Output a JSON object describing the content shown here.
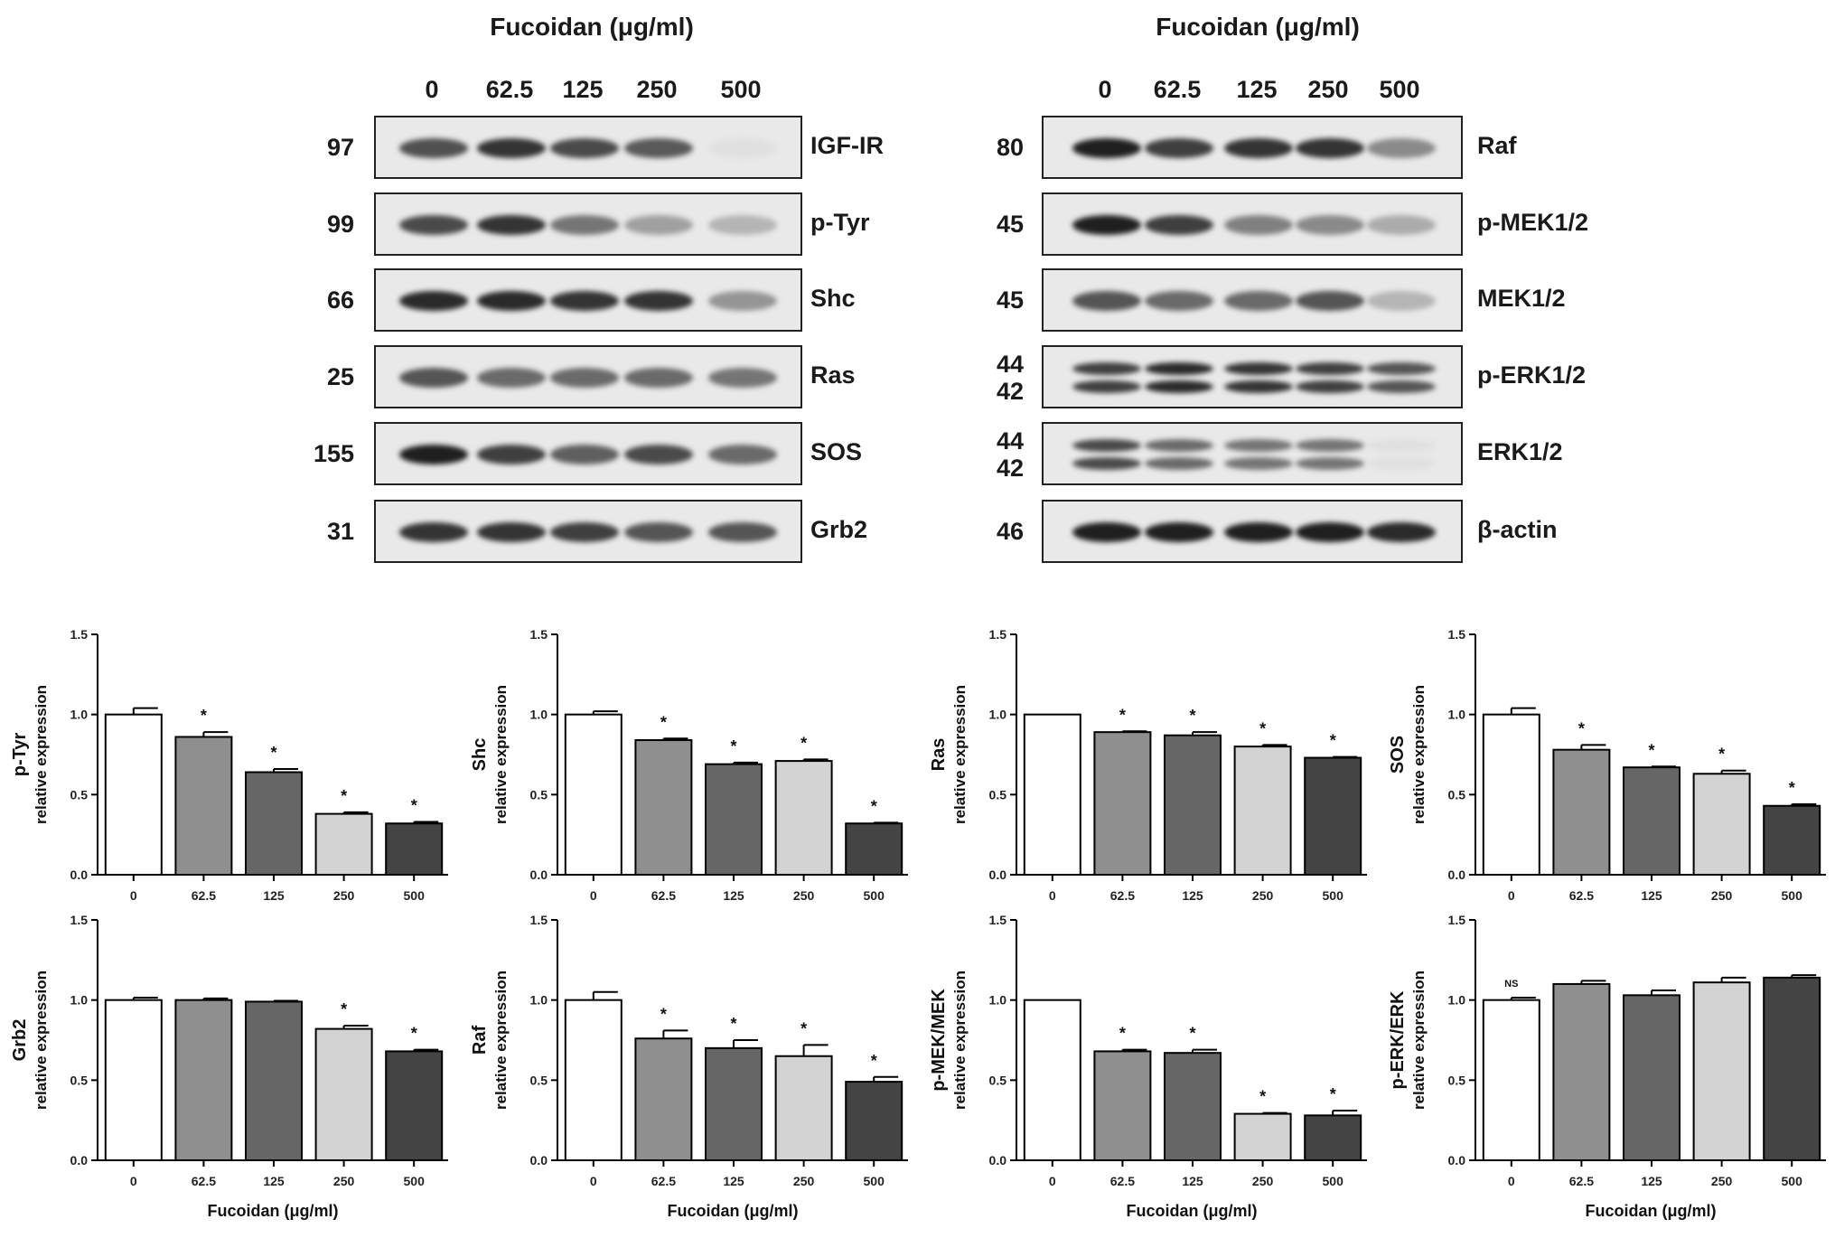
{
  "figure": {
    "left_panel": {
      "heading": "Fucoidan (μg/ml)",
      "lanes": [
        "0",
        "62.5",
        "125",
        "250",
        "500"
      ],
      "rows": [
        {
          "protein": "IGF-IR",
          "mw": [
            "97"
          ],
          "intensity": [
            0.72,
            0.85,
            0.75,
            0.68,
            0.05
          ]
        },
        {
          "protein": "p-Tyr",
          "mw": [
            "99"
          ],
          "intensity": [
            0.75,
            0.85,
            0.55,
            0.35,
            0.25
          ]
        },
        {
          "protein": "Shc",
          "mw": [
            "66"
          ],
          "intensity": [
            0.9,
            0.9,
            0.85,
            0.85,
            0.4
          ]
        },
        {
          "protein": "Ras",
          "mw": [
            "25"
          ],
          "intensity": [
            0.7,
            0.6,
            0.6,
            0.6,
            0.55
          ]
        },
        {
          "protein": "SOS",
          "mw": [
            "155"
          ],
          "intensity": [
            0.95,
            0.8,
            0.65,
            0.75,
            0.6
          ]
        },
        {
          "protein": "Grb2",
          "mw": [
            "31"
          ],
          "intensity": [
            0.85,
            0.85,
            0.8,
            0.7,
            0.7
          ]
        }
      ]
    },
    "right_panel": {
      "heading": "Fucoidan (μg/ml)",
      "lanes": [
        "0",
        "62.5",
        "125",
        "250",
        "500"
      ],
      "rows": [
        {
          "protein": "Raf",
          "mw": [
            "80"
          ],
          "intensity": [
            0.95,
            0.8,
            0.85,
            0.85,
            0.45
          ]
        },
        {
          "protein": "p-MEK1/2",
          "mw": [
            "45"
          ],
          "intensity": [
            0.95,
            0.8,
            0.5,
            0.45,
            0.3
          ]
        },
        {
          "protein": "MEK1/2",
          "mw": [
            "45"
          ],
          "intensity": [
            0.7,
            0.6,
            0.6,
            0.7,
            0.25
          ]
        },
        {
          "protein": "p-ERK1/2",
          "mw": [
            "44",
            "42"
          ],
          "intensity": [
            0.8,
            0.9,
            0.85,
            0.8,
            0.7
          ]
        },
        {
          "protein": "ERK1/2",
          "mw": [
            "44",
            "42"
          ],
          "intensity": [
            0.75,
            0.6,
            0.55,
            0.55,
            0.05
          ]
        },
        {
          "protein": "β-actin",
          "mw": [
            "46"
          ],
          "intensity": [
            0.95,
            0.95,
            0.95,
            0.95,
            0.9
          ]
        }
      ]
    }
  },
  "chart_data": [
    {
      "type": "bar",
      "ylabel": "p-Tyr",
      "ylabel2": "relative expression",
      "xlabel": "",
      "categories": [
        "0",
        "62.5",
        "125",
        "250",
        "500"
      ],
      "values": [
        1.0,
        0.86,
        0.64,
        0.38,
        0.32
      ],
      "errors": [
        0.04,
        0.03,
        0.02,
        0.01,
        0.01
      ],
      "annotations": [
        "",
        "*",
        "*",
        "*",
        "*"
      ],
      "ylim": [
        0,
        1.5
      ],
      "yticks": [
        "0.0",
        "0.5",
        "1.0",
        "1.5"
      ]
    },
    {
      "type": "bar",
      "ylabel": "Shc",
      "ylabel2": "relative expression",
      "xlabel": "",
      "categories": [
        "0",
        "62.5",
        "125",
        "250",
        "500"
      ],
      "values": [
        1.0,
        0.84,
        0.69,
        0.71,
        0.32
      ],
      "errors": [
        0.02,
        0.01,
        0.01,
        0.01,
        0.005
      ],
      "annotations": [
        "",
        "*",
        "*",
        "*",
        "*"
      ],
      "ylim": [
        0,
        1.5
      ],
      "yticks": [
        "0.0",
        "0.5",
        "1.0",
        "1.5"
      ]
    },
    {
      "type": "bar",
      "ylabel": "Ras",
      "ylabel2": "relative expression",
      "xlabel": "",
      "categories": [
        "0",
        "62.5",
        "125",
        "250",
        "500"
      ],
      "values": [
        1.0,
        0.89,
        0.87,
        0.8,
        0.73
      ],
      "errors": [
        0.0,
        0.005,
        0.02,
        0.01,
        0.005
      ],
      "annotations": [
        "",
        "*",
        "*",
        "*",
        "*"
      ],
      "ylim": [
        0,
        1.5
      ],
      "yticks": [
        "0.0",
        "0.5",
        "1.0",
        "1.5"
      ]
    },
    {
      "type": "bar",
      "ylabel": "SOS",
      "ylabel2": "relative expression",
      "xlabel": "",
      "categories": [
        "0",
        "62.5",
        "125",
        "250",
        "500"
      ],
      "values": [
        1.0,
        0.78,
        0.67,
        0.63,
        0.43
      ],
      "errors": [
        0.04,
        0.03,
        0.005,
        0.02,
        0.01
      ],
      "annotations": [
        "",
        "*",
        "*",
        "*",
        "*"
      ],
      "ylim": [
        0,
        1.5
      ],
      "yticks": [
        "0.0",
        "0.5",
        "1.0",
        "1.5"
      ]
    },
    {
      "type": "bar",
      "ylabel": "Grb2",
      "ylabel2": "relative expression",
      "xlabel": "Fucoidan (μg/ml)",
      "categories": [
        "0",
        "62.5",
        "125",
        "250",
        "500"
      ],
      "values": [
        1.0,
        1.0,
        0.99,
        0.82,
        0.68
      ],
      "errors": [
        0.015,
        0.01,
        0.005,
        0.02,
        0.01
      ],
      "annotations": [
        "",
        "",
        "",
        "*",
        "*"
      ],
      "ylim": [
        0,
        1.5
      ],
      "yticks": [
        "0.0",
        "0.5",
        "1.0",
        "1.5"
      ]
    },
    {
      "type": "bar",
      "ylabel": "Raf",
      "ylabel2": "relative expression",
      "xlabel": "Fucoidan (μg/ml)",
      "categories": [
        "0",
        "62.5",
        "125",
        "250",
        "500"
      ],
      "values": [
        1.0,
        0.76,
        0.7,
        0.65,
        0.49
      ],
      "errors": [
        0.05,
        0.05,
        0.05,
        0.07,
        0.03
      ],
      "annotations": [
        "",
        "*",
        "*",
        "*",
        "*"
      ],
      "ylim": [
        0,
        1.5
      ],
      "yticks": [
        "0.0",
        "0.5",
        "1.0",
        "1.5"
      ]
    },
    {
      "type": "bar",
      "ylabel": "p-MEK/MEK",
      "ylabel2": "relative expression",
      "xlabel": "Fucoidan (μg/ml)",
      "categories": [
        "0",
        "62.5",
        "125",
        "250",
        "500"
      ],
      "values": [
        1.0,
        0.68,
        0.67,
        0.29,
        0.28
      ],
      "errors": [
        0.0,
        0.01,
        0.02,
        0.005,
        0.03
      ],
      "annotations": [
        "",
        "*",
        "*",
        "*",
        "*"
      ],
      "ylim": [
        0,
        1.5
      ],
      "yticks": [
        "0.0",
        "0.5",
        "1.0",
        "1.5"
      ]
    },
    {
      "type": "bar",
      "ylabel": "p-ERK/ERK",
      "ylabel2": "relative expression",
      "xlabel": "Fucoidan (μg/ml)",
      "categories": [
        "0",
        "62.5",
        "125",
        "250",
        "500"
      ],
      "values": [
        1.0,
        1.1,
        1.03,
        1.11,
        1.14
      ],
      "errors": [
        0.015,
        0.02,
        0.03,
        0.03,
        0.015
      ],
      "annotations": [
        "NS",
        "",
        "",
        "",
        ""
      ],
      "ylim": [
        0,
        1.5
      ],
      "yticks": [
        "0.0",
        "0.5",
        "1.0",
        "1.5"
      ]
    }
  ]
}
